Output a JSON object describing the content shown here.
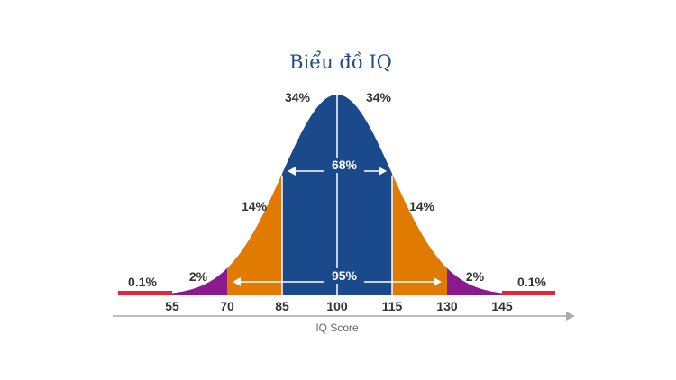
{
  "chart_data": {
    "type": "area",
    "title": "Biểu đồ IQ",
    "xlabel": "IQ Score",
    "ylabel": "",
    "mean": 100,
    "sd": 15,
    "xlim": [
      40,
      160
    ],
    "ticks": [
      "55",
      "70",
      "85",
      "100",
      "115",
      "130",
      "145"
    ],
    "regions": [
      {
        "from": 55,
        "to": 70,
        "color": "#8b1a8e",
        "label": "2%",
        "side": "left"
      },
      {
        "from": 70,
        "to": 85,
        "color": "#e07a00",
        "label": "14%",
        "side": "left"
      },
      {
        "from": 85,
        "to": 100,
        "color": "#1b4a8c",
        "label": "34%",
        "side": "left"
      },
      {
        "from": 100,
        "to": 115,
        "color": "#1b4a8c",
        "label": "34%",
        "side": "right"
      },
      {
        "from": 115,
        "to": 130,
        "color": "#e07a00",
        "label": "14%",
        "side": "right"
      },
      {
        "from": 130,
        "to": 145,
        "color": "#8b1a8e",
        "label": "2%",
        "side": "right"
      }
    ],
    "tails": [
      {
        "from": 40,
        "to": 55,
        "color": "#e8243c",
        "label": "0.1%",
        "side": "left"
      },
      {
        "from": 145,
        "to": 160,
        "color": "#e8243c",
        "label": "0.1%",
        "side": "right"
      }
    ],
    "annotations": [
      {
        "from": 85,
        "to": 115,
        "label": "68%"
      },
      {
        "from": 70,
        "to": 130,
        "label": "95%"
      }
    ]
  }
}
